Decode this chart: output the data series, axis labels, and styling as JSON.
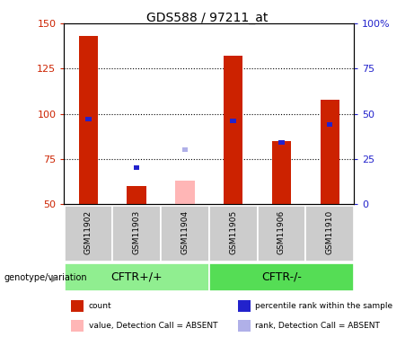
{
  "title": "GDS588 / 97211_at",
  "samples": [
    "GSM11902",
    "GSM11903",
    "GSM11904",
    "GSM11905",
    "GSM11906",
    "GSM11910"
  ],
  "groups": [
    {
      "name": "CFTR+/+",
      "indices": [
        0,
        1,
        2
      ],
      "color": "#90EE90"
    },
    {
      "name": "CFTR-/-",
      "indices": [
        3,
        4,
        5
      ],
      "color": "#55DD55"
    }
  ],
  "count_values": [
    143,
    60,
    null,
    132,
    85,
    108
  ],
  "count_absent": [
    null,
    null,
    63,
    null,
    null,
    null
  ],
  "rank_values": [
    47,
    20,
    null,
    46,
    34,
    44
  ],
  "rank_absent": [
    null,
    null,
    30,
    null,
    null,
    null
  ],
  "ylim_left": [
    50,
    150
  ],
  "ylim_right": [
    0,
    100
  ],
  "yticks_left": [
    50,
    75,
    100,
    125,
    150
  ],
  "yticks_right": [
    0,
    25,
    50,
    75,
    100
  ],
  "bar_color_count": "#CC2200",
  "bar_color_rank": "#2222CC",
  "bar_color_count_absent": "#FFB6B6",
  "bar_color_rank_absent": "#B0B0E8",
  "bg_color": "#FFFFFF",
  "bar_width": 0.4,
  "rank_bar_width": 0.12,
  "rank_bar_height": 2.5,
  "legend_items": [
    {
      "color": "#CC2200",
      "label": "count"
    },
    {
      "color": "#2222CC",
      "label": "percentile rank within the sample"
    },
    {
      "color": "#FFB6B6",
      "label": "value, Detection Call = ABSENT"
    },
    {
      "color": "#B0B0E8",
      "label": "rank, Detection Call = ABSENT"
    }
  ]
}
